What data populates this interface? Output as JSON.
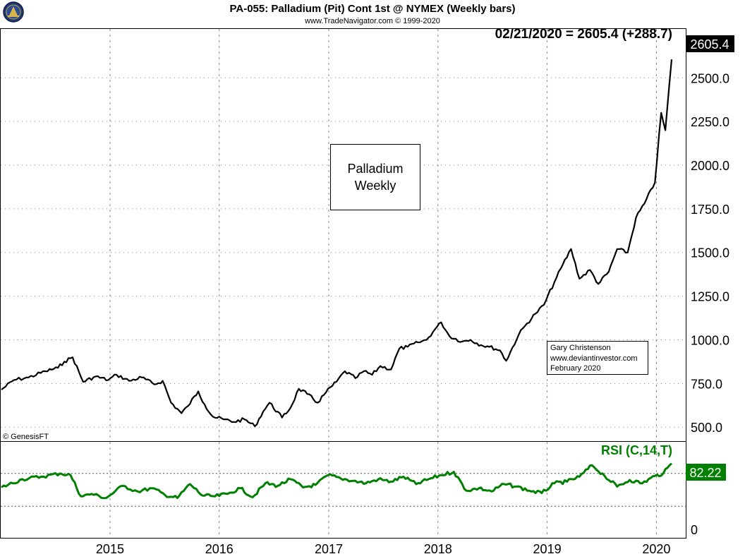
{
  "header": {
    "title": "PA-055:  Palladium (Pit) Cont 1st @ NYMEX  (Weekly bars)",
    "subtitle": "www.TradeNavigator.com © 1999-2020"
  },
  "price_panel": {
    "readout": "02/21/2020 = 2605.4 (+288.7)",
    "last_value_tag": "2605.4",
    "annotation_lines": [
      "Palladium",
      "Weekly"
    ],
    "credit_lines": [
      "Gary Christenson",
      "www.deviantinvestor.com",
      "February 2020"
    ],
    "copyright": "© GenesisFT"
  },
  "rsi_panel": {
    "title": "RSI (C,14,T)",
    "last_value_tag": "82.22",
    "ticks": [
      "0"
    ]
  },
  "colors": {
    "price_line": "#000000",
    "rsi_line": "#008000",
    "tag_bg": "#000000",
    "rsi_tag_bg": "#008000",
    "grid": "#888888"
  },
  "chart_data": [
    {
      "type": "line",
      "x_axis": {
        "type": "date",
        "range": [
          "2014-01-03",
          "2020-02-21"
        ],
        "ticks": [
          "2015",
          "2016",
          "2017",
          "2018",
          "2019",
          "2020"
        ]
      },
      "y_axis": {
        "range": [
          420,
          2780
        ],
        "ticks": [
          500.0,
          750.0,
          1000.0,
          1250.0,
          1500.0,
          1750.0,
          2000.0,
          2250.0,
          2500.0
        ],
        "tick_labels": [
          "500.0",
          "750.0",
          "1000.0",
          "1250.0",
          "1500.0",
          "1750.0",
          "2000.0",
          "2250.0",
          "2500.0"
        ]
      },
      "grid": true,
      "series": [
        {
          "x": [
            "2014-01-03",
            "2014-02-14",
            "2014-04-04",
            "2014-05-30",
            "2014-07-11",
            "2014-08-01",
            "2014-08-29",
            "2014-10-03",
            "2014-11-14",
            "2014-12-26",
            "2015-01-23",
            "2015-03-06",
            "2015-04-17",
            "2015-05-29",
            "2015-06-26",
            "2015-07-24",
            "2015-08-28",
            "2015-09-18",
            "2015-10-23",
            "2015-11-13",
            "2015-12-11",
            "2016-01-15",
            "2016-02-19",
            "2016-03-25",
            "2016-04-29",
            "2016-05-27",
            "2016-06-17",
            "2016-07-29",
            "2016-08-26",
            "2016-09-23",
            "2016-10-21",
            "2016-11-25",
            "2016-12-23",
            "2017-01-27",
            "2017-02-24",
            "2017-03-31",
            "2017-04-28",
            "2017-05-26",
            "2017-06-23",
            "2017-07-28",
            "2017-08-25",
            "2017-09-22",
            "2017-10-27",
            "2017-11-24",
            "2017-12-22",
            "2018-01-12",
            "2018-02-09",
            "2018-03-23",
            "2018-04-20",
            "2018-05-25",
            "2018-06-22",
            "2018-07-27",
            "2018-08-17",
            "2018-09-28",
            "2018-10-19",
            "2018-11-23",
            "2018-12-21",
            "2019-01-25",
            "2019-02-22",
            "2019-03-22",
            "2019-04-19",
            "2019-05-24",
            "2019-06-21",
            "2019-07-26",
            "2019-08-23",
            "2019-09-27",
            "2019-10-25",
            "2019-11-22",
            "2019-12-27",
            "2020-01-17",
            "2020-01-31",
            "2020-02-21"
          ],
          "y": [
            715,
            770,
            785,
            820,
            840,
            875,
            900,
            760,
            790,
            770,
            800,
            765,
            785,
            745,
            765,
            640,
            580,
            620,
            705,
            630,
            560,
            545,
            530,
            545,
            505,
            590,
            640,
            555,
            610,
            720,
            690,
            640,
            700,
            760,
            820,
            780,
            820,
            800,
            850,
            830,
            950,
            960,
            985,
            1000,
            1060,
            1100,
            1020,
            990,
            1000,
            970,
            960,
            940,
            880,
            1030,
            1080,
            1150,
            1200,
            1330,
            1430,
            1520,
            1350,
            1400,
            1320,
            1390,
            1520,
            1500,
            1700,
            1780,
            1900,
            2300,
            2200,
            2605.4
          ]
        }
      ]
    },
    {
      "type": "line",
      "title": "RSI (C,14,T)",
      "x_axis": {
        "type": "date",
        "range": [
          "2014-01-03",
          "2020-02-21"
        ]
      },
      "y_axis": {
        "range": [
          0,
          100
        ],
        "ticks": [
          0
        ],
        "tick_labels": [
          "0"
        ],
        "reference_lines": [
          30,
          70
        ]
      },
      "grid": false,
      "series": [
        {
          "x": [
            "2014-01-03",
            "2014-03-14",
            "2014-05-16",
            "2014-07-18",
            "2014-08-22",
            "2014-09-26",
            "2014-10-31",
            "2014-12-19",
            "2015-02-13",
            "2015-04-03",
            "2015-05-22",
            "2015-07-03",
            "2015-08-14",
            "2015-09-25",
            "2015-11-06",
            "2015-12-18",
            "2016-01-29",
            "2016-03-11",
            "2016-04-22",
            "2016-06-03",
            "2016-07-15",
            "2016-08-26",
            "2016-10-07",
            "2016-11-18",
            "2016-12-30",
            "2017-02-10",
            "2017-03-24",
            "2017-05-05",
            "2017-06-16",
            "2017-07-28",
            "2017-09-08",
            "2017-10-20",
            "2017-12-01",
            "2018-01-12",
            "2018-02-23",
            "2018-04-06",
            "2018-05-18",
            "2018-06-29",
            "2018-08-10",
            "2018-09-21",
            "2018-11-02",
            "2018-12-14",
            "2019-01-25",
            "2019-03-08",
            "2019-04-19",
            "2019-05-31",
            "2019-07-12",
            "2019-08-23",
            "2019-10-04",
            "2019-11-15",
            "2019-12-27",
            "2020-01-24",
            "2020-02-21"
          ],
          "y": [
            53,
            63,
            66,
            70,
            68,
            42,
            45,
            40,
            55,
            48,
            52,
            44,
            40,
            57,
            43,
            42,
            45,
            52,
            41,
            58,
            55,
            63,
            53,
            56,
            68,
            64,
            61,
            58,
            63,
            60,
            66,
            57,
            63,
            68,
            72,
            49,
            52,
            48,
            57,
            54,
            49,
            46,
            58,
            60,
            66,
            80,
            67,
            54,
            62,
            58,
            67,
            70,
            82.22
          ]
        }
      ]
    }
  ]
}
